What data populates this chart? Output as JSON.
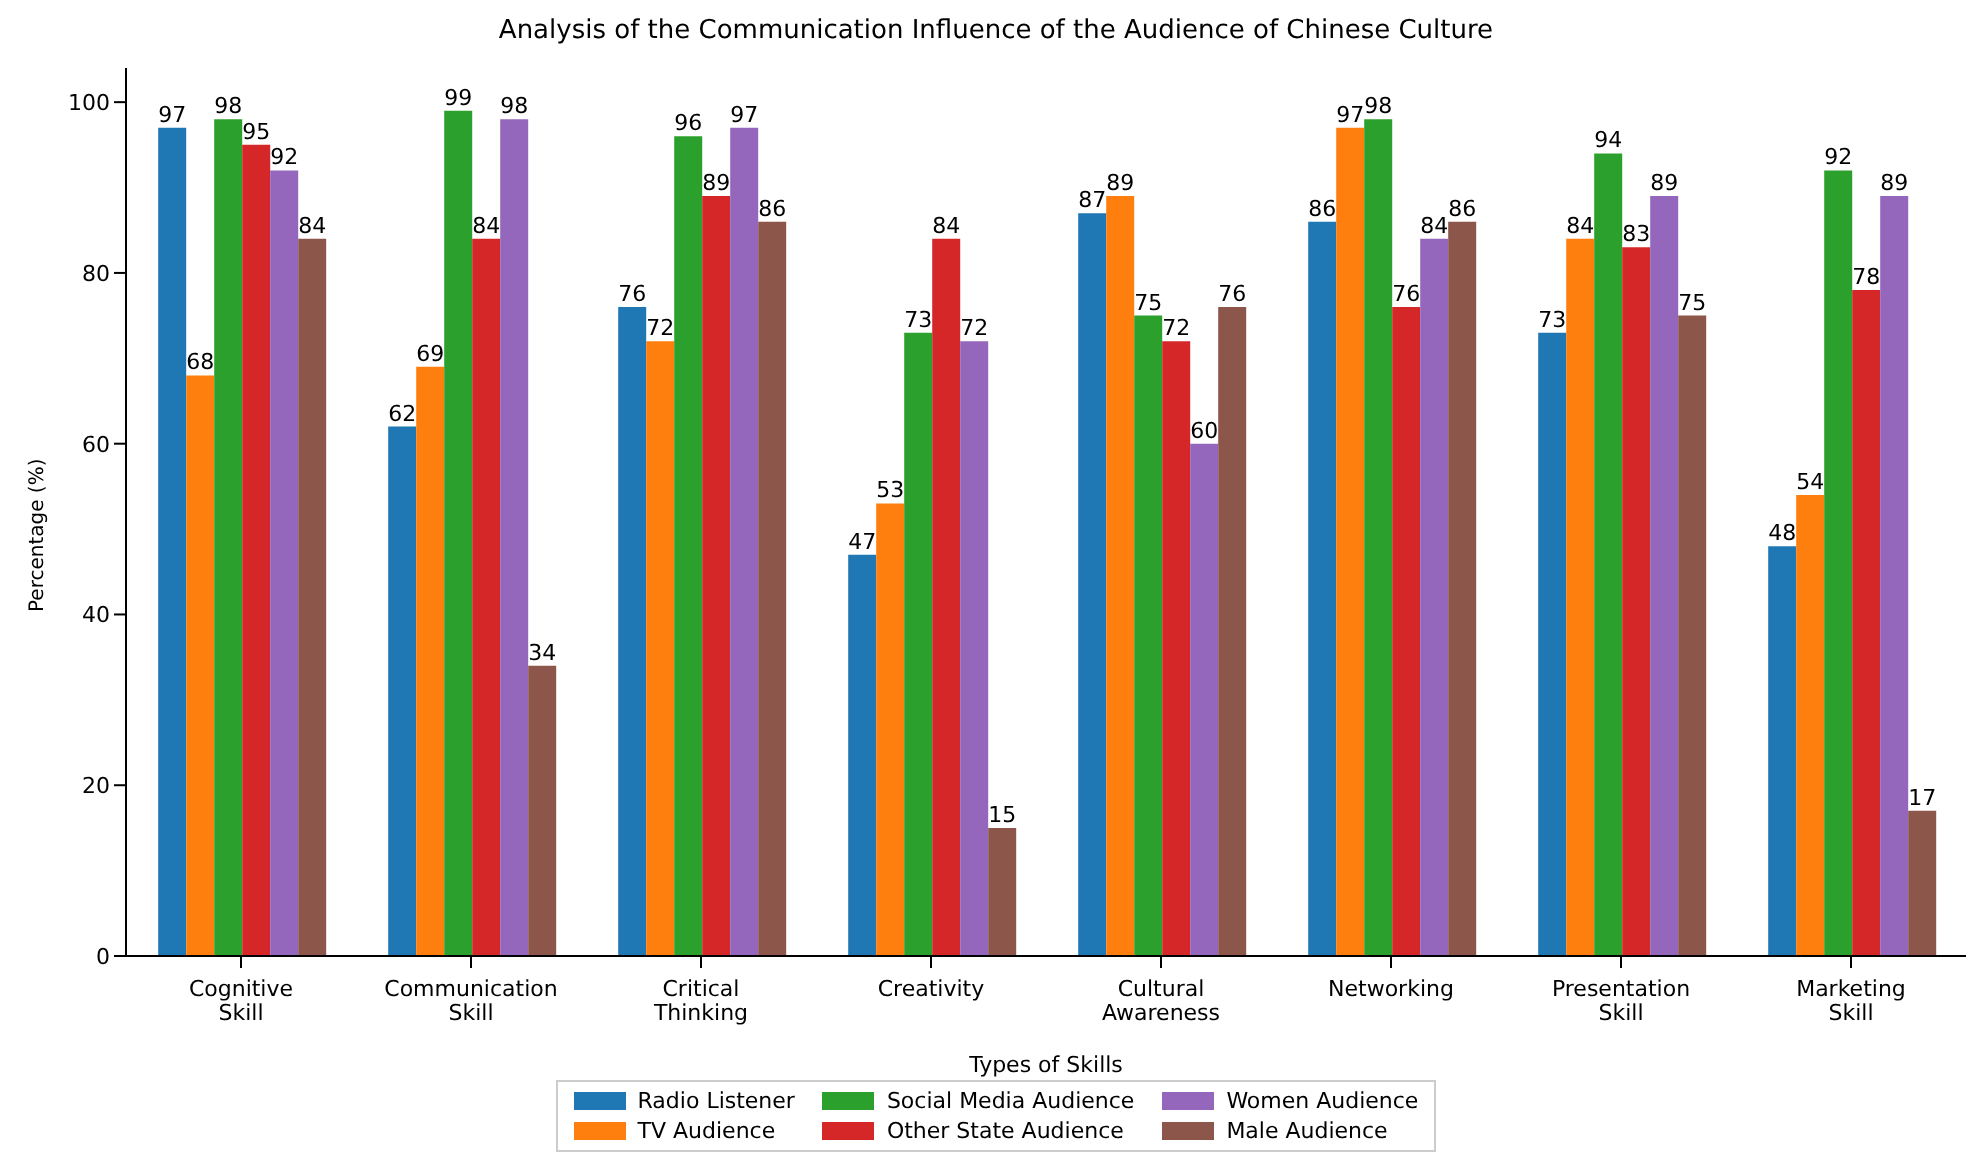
{
  "chart_data": {
    "type": "bar",
    "title": "Analysis of the Communication Influence of the Audience of Chinese Culture",
    "xlabel": "Types of Skills",
    "ylabel": "Percentage (%)",
    "categories": [
      "Cognitive\nSkill",
      "Communication\nSkill",
      "Critical\nThinking",
      "Creativity",
      "Cultural\nAwareness",
      "Networking",
      "Presentation\nSkill",
      "Marketing\nSkill"
    ],
    "series": [
      {
        "name": "Radio Listener",
        "color": "#1f77b4",
        "values": [
          97,
          62,
          76,
          47,
          87,
          86,
          73,
          48
        ]
      },
      {
        "name": "TV Audience",
        "color": "#ff7f0e",
        "values": [
          68,
          69,
          72,
          53,
          89,
          97,
          84,
          54
        ]
      },
      {
        "name": "Social Media Audience",
        "color": "#2ca02c",
        "values": [
          98,
          99,
          96,
          73,
          75,
          98,
          94,
          92
        ]
      },
      {
        "name": "Other State Audience",
        "color": "#d62728",
        "values": [
          95,
          84,
          89,
          84,
          72,
          76,
          83,
          78
        ]
      },
      {
        "name": "Women Audience",
        "color": "#9467bd",
        "values": [
          92,
          98,
          97,
          72,
          60,
          84,
          89,
          89
        ]
      },
      {
        "name": "Male Audience",
        "color": "#8c564b",
        "values": [
          84,
          34,
          86,
          15,
          76,
          86,
          75,
          17
        ]
      }
    ],
    "ylim": [
      0,
      104
    ],
    "yticks": [
      0,
      20,
      40,
      60,
      80,
      100
    ],
    "grid": false,
    "legend": "bottom",
    "data_labels": true
  }
}
